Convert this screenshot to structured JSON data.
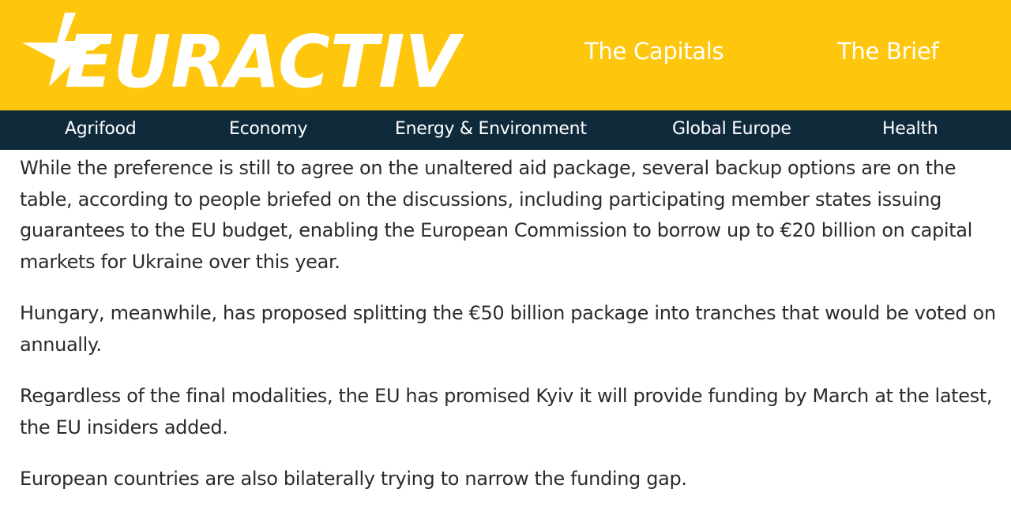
{
  "header": {
    "logo_text": "EURACTIV",
    "links": [
      "The Capitals",
      "The Brief"
    ],
    "colors": {
      "brand_yellow": "#fec70e",
      "nav_navy": "#0f2a3b"
    }
  },
  "nav": {
    "items": [
      "Agrifood",
      "Economy",
      "Energy & Environment",
      "Global Europe",
      "Health"
    ]
  },
  "article": {
    "paragraphs": [
      "While the preference is still to agree on the unaltered aid package, several backup options are on the table, according to people briefed on the discussions, including participating member states issuing guarantees to the EU budget, enabling the European Commission to borrow up to €20 billion on capital markets for Ukraine over this year.",
      "Hungary, meanwhile, has proposed splitting the €50 billion package into tranches that would be voted on annually.",
      "Regardless of the final modalities, the EU has promised Kyiv it will provide funding by March at the latest, the EU insiders added.",
      "European countries are also bilaterally trying to narrow the funding gap."
    ]
  }
}
